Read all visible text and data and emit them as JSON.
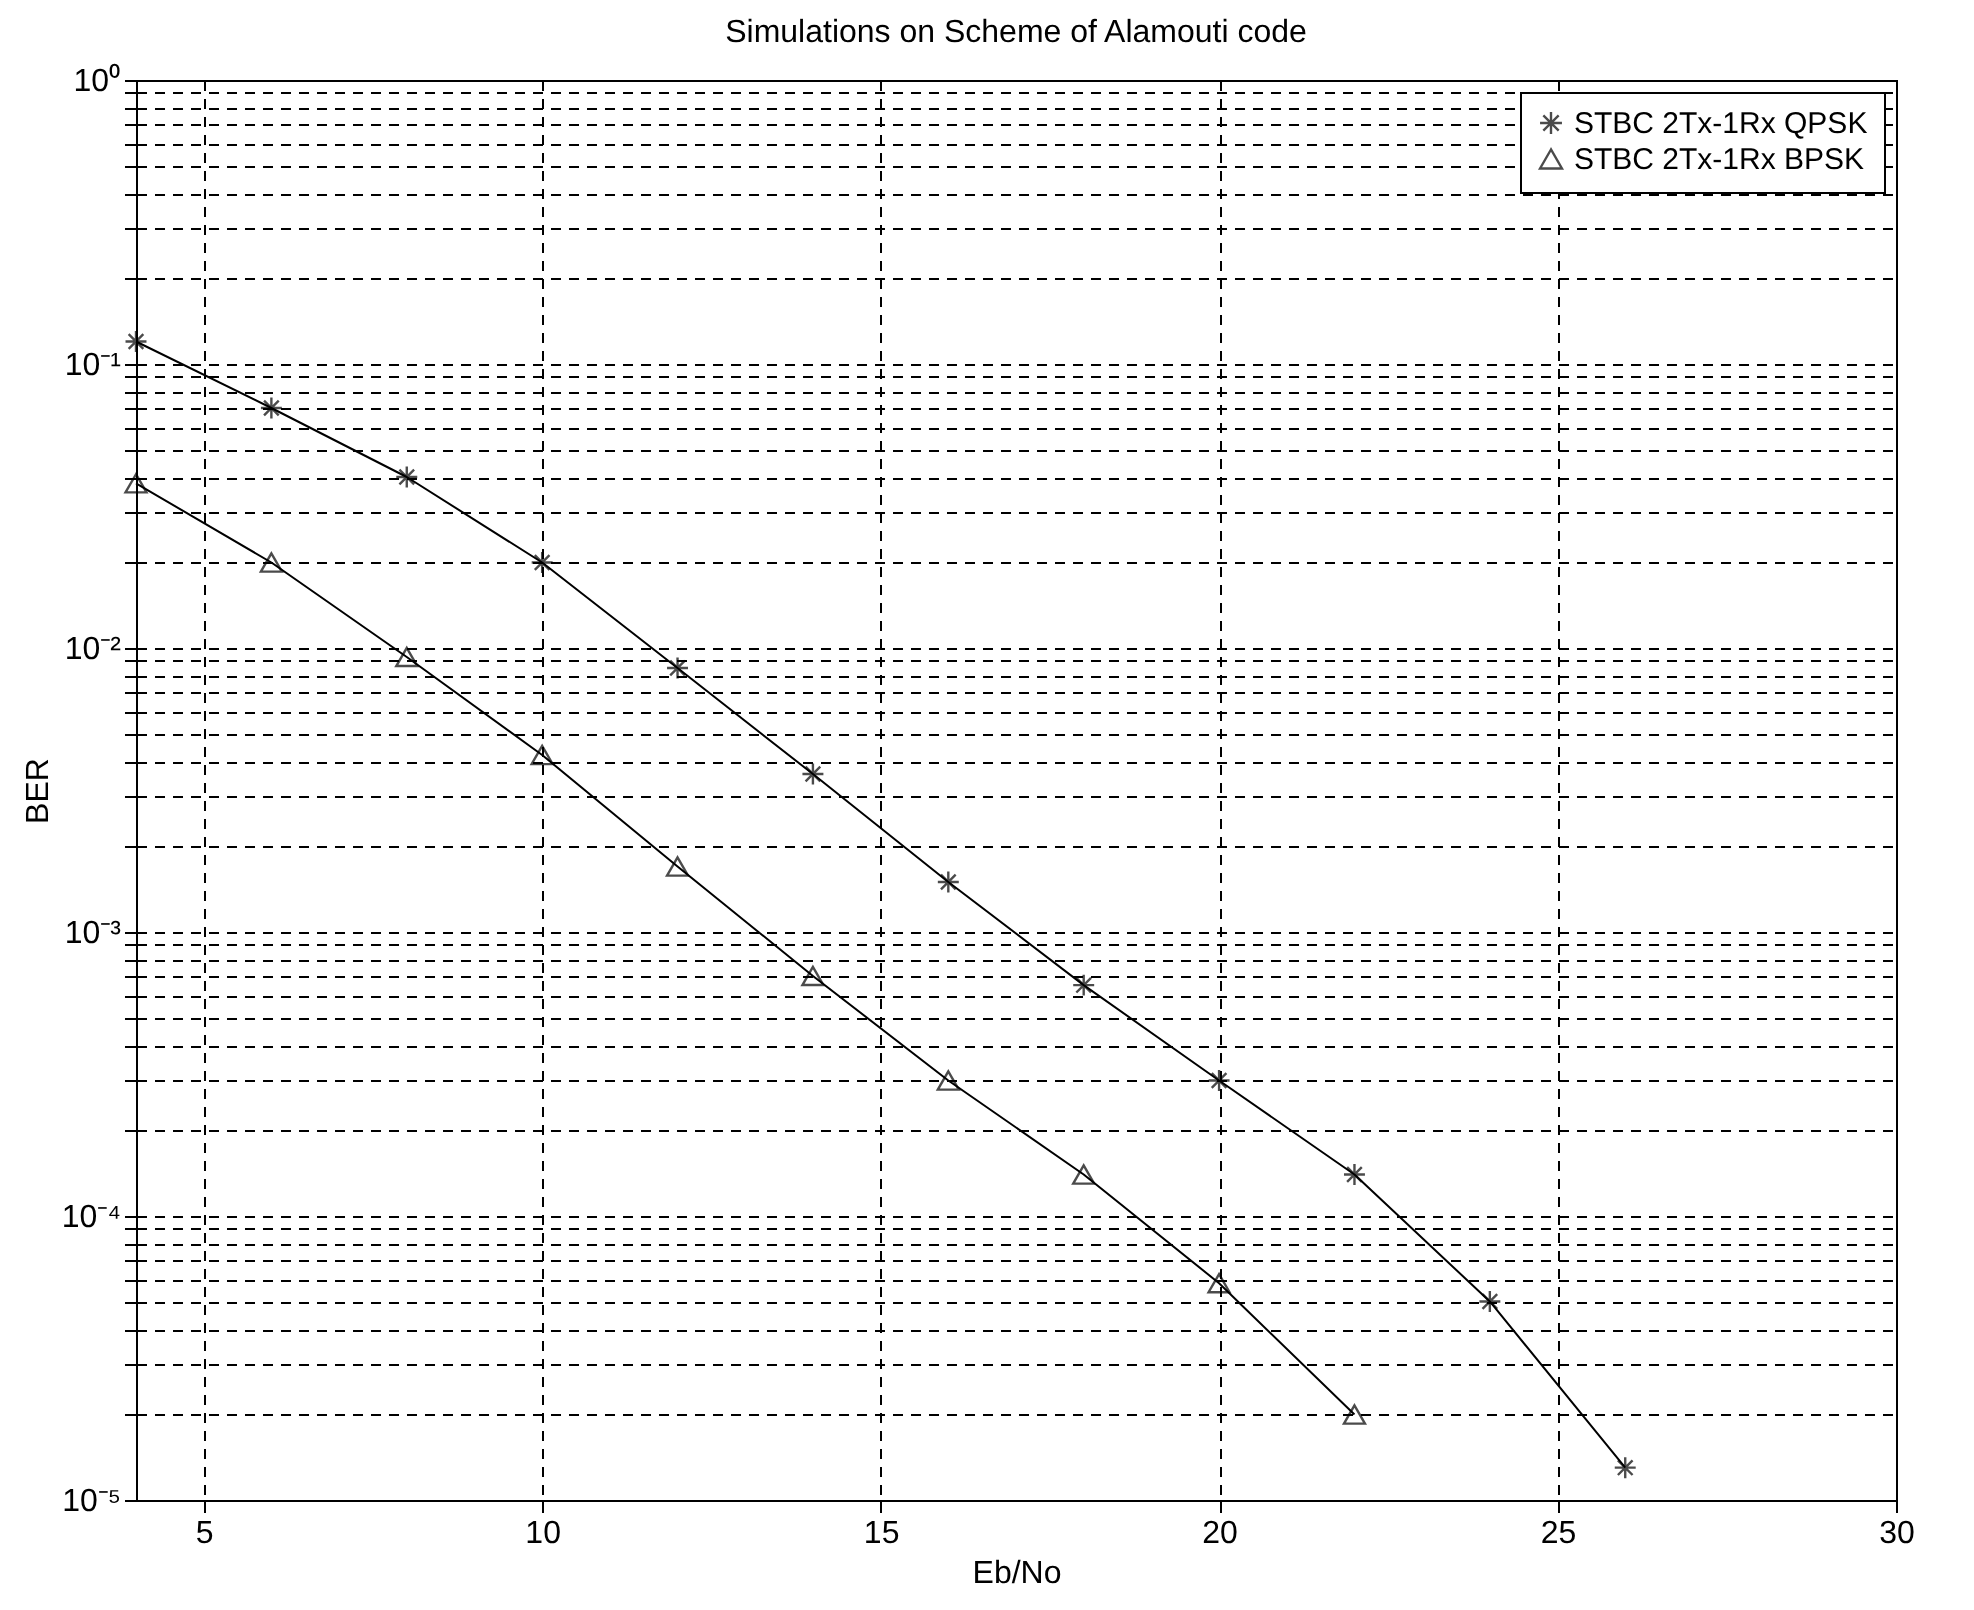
{
  "chart_data": {
    "type": "line",
    "title": "Simulations on Scheme of Alamouti code",
    "xlabel": "Eb/No",
    "ylabel": "BER",
    "x": [
      4,
      6,
      8,
      10,
      12,
      14,
      16,
      18,
      20,
      22,
      24,
      26
    ],
    "series": [
      {
        "name": "STBC 2Tx-1Rx QPSK",
        "color": "#000000",
        "marker": "cross",
        "values": [
          0.12,
          0.07,
          0.04,
          0.02,
          0.0085,
          0.0036,
          0.0015,
          0.00065,
          0.0003,
          0.00014,
          5e-05,
          1.3e-05
        ]
      },
      {
        "name": "STBC 2Tx-1Rx BPSK",
        "color": "#000000",
        "marker": "triangle",
        "x": [
          4,
          6,
          8,
          10,
          12,
          14,
          16,
          18,
          20,
          22
        ],
        "values": [
          0.038,
          0.02,
          0.0093,
          0.0042,
          0.0017,
          0.0007,
          0.0003,
          0.00014,
          5.8e-05,
          2e-05
        ]
      }
    ],
    "log": "y",
    "xlim": [
      4,
      30
    ],
    "xticks": [
      5,
      10,
      15,
      20,
      25,
      30
    ],
    "ylim": [
      1e-05,
      1
    ],
    "yticks": [
      {
        "value": 1e-05,
        "label": "10⁻⁵"
      },
      {
        "value": 0.0001,
        "label": "10⁻⁴"
      },
      {
        "value": 0.001,
        "label": "10⁻³"
      },
      {
        "value": 0.01,
        "label": "10⁻²"
      },
      {
        "value": 0.1,
        "label": "10⁻¹"
      },
      {
        "value": 1,
        "label": "10⁰"
      }
    ],
    "grid": true,
    "legend": "top right",
    "line_style": "solid"
  }
}
